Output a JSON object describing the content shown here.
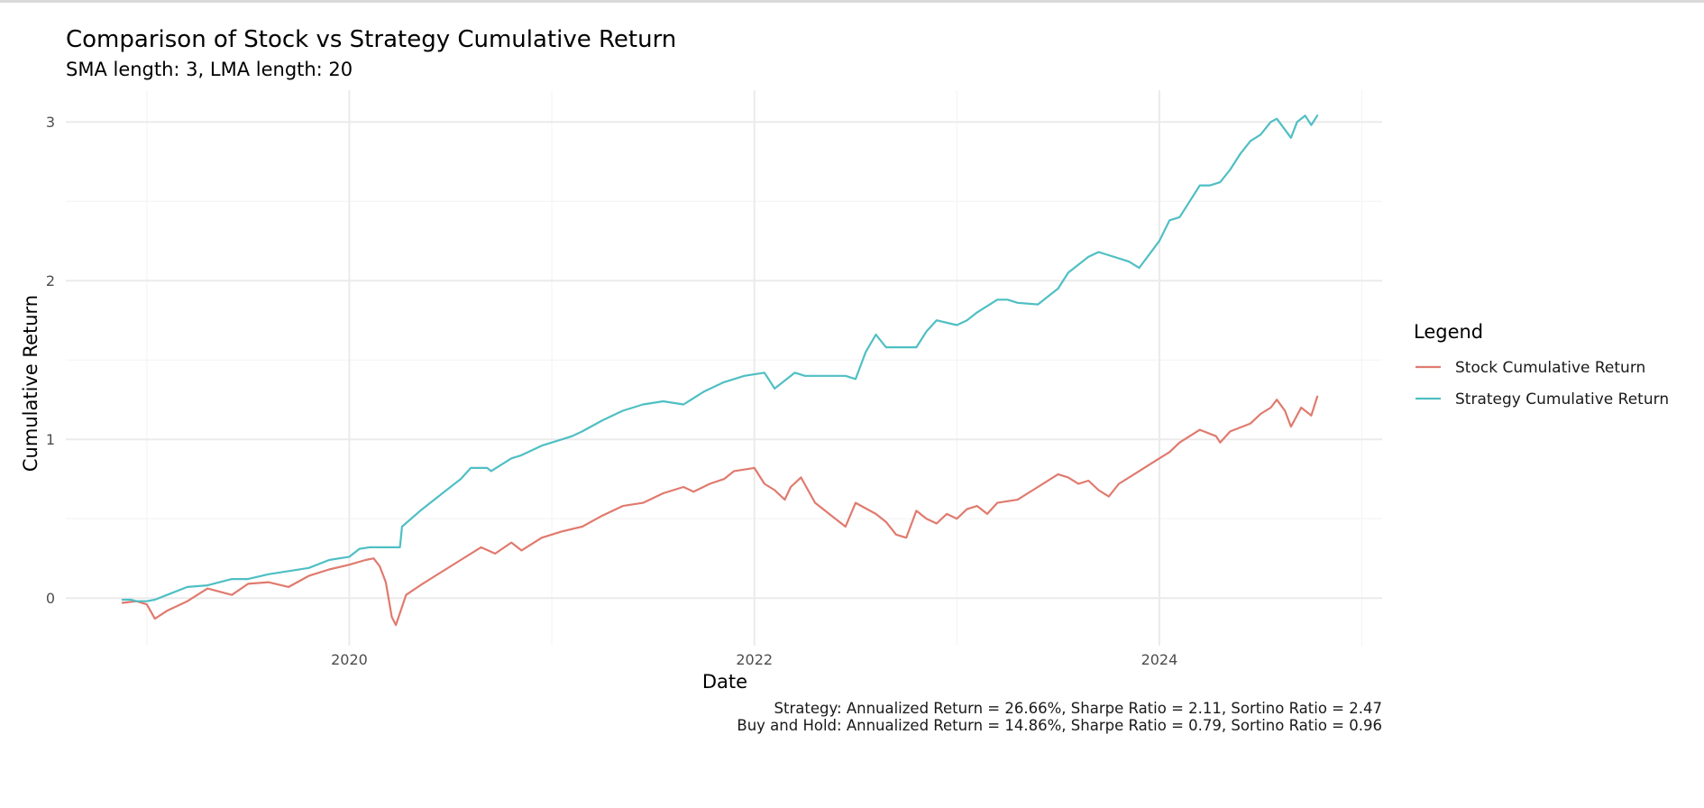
{
  "chart_data": {
    "type": "line",
    "title": "Comparison of Stock vs Strategy Cumulative Return",
    "subtitle": "SMA length: 3, LMA length: 20",
    "xlabel": "Date",
    "ylabel": "Cumulative Return",
    "x_ticks": [
      "2020",
      "2022",
      "2024"
    ],
    "y_ticks": [
      "0",
      "1",
      "2",
      "3"
    ],
    "xlim": [
      2018.6,
      2025.1
    ],
    "ylim": [
      -0.3,
      3.2
    ],
    "grid": true,
    "legend": {
      "title": "Legend",
      "position": "right"
    },
    "caption": [
      "Strategy: Annualized Return = 26.66%, Sharpe Ratio = 2.11, Sortino Ratio = 2.47",
      "Buy and Hold: Annualized Return = 14.86%, Sharpe Ratio = 0.79, Sortino Ratio = 0.96"
    ],
    "series": [
      {
        "name": "Stock Cumulative Return",
        "color": "#E07A6E",
        "x": [
          2018.88,
          2018.95,
          2019.0,
          2019.04,
          2019.1,
          2019.2,
          2019.3,
          2019.42,
          2019.5,
          2019.6,
          2019.7,
          2019.8,
          2019.9,
          2020.0,
          2020.08,
          2020.12,
          2020.15,
          2020.18,
          2020.21,
          2020.23,
          2020.28,
          2020.35,
          2020.45,
          2020.55,
          2020.65,
          2020.72,
          2020.8,
          2020.85,
          2020.95,
          2021.05,
          2021.15,
          2021.25,
          2021.35,
          2021.45,
          2021.55,
          2021.65,
          2021.7,
          2021.78,
          2021.85,
          2021.9,
          2022.0,
          2022.05,
          2022.1,
          2022.15,
          2022.18,
          2022.23,
          2022.3,
          2022.35,
          2022.4,
          2022.45,
          2022.5,
          2022.6,
          2022.65,
          2022.7,
          2022.75,
          2022.8,
          2022.85,
          2022.9,
          2022.95,
          2023.0,
          2023.05,
          2023.1,
          2023.15,
          2023.2,
          2023.3,
          2023.4,
          2023.5,
          2023.55,
          2023.6,
          2023.65,
          2023.7,
          2023.75,
          2023.8,
          2023.9,
          2024.0,
          2024.05,
          2024.1,
          2024.2,
          2024.28,
          2024.3,
          2024.35,
          2024.45,
          2024.5,
          2024.55,
          2024.58,
          2024.62,
          2024.65,
          2024.7,
          2024.75,
          2024.78
        ],
        "y": [
          -0.03,
          -0.02,
          -0.04,
          -0.13,
          -0.08,
          -0.02,
          0.06,
          0.02,
          0.09,
          0.1,
          0.07,
          0.14,
          0.18,
          0.21,
          0.24,
          0.25,
          0.2,
          0.1,
          -0.12,
          -0.17,
          0.02,
          0.08,
          0.16,
          0.24,
          0.32,
          0.28,
          0.35,
          0.3,
          0.38,
          0.42,
          0.45,
          0.52,
          0.58,
          0.6,
          0.66,
          0.7,
          0.67,
          0.72,
          0.75,
          0.8,
          0.82,
          0.72,
          0.68,
          0.62,
          0.7,
          0.76,
          0.6,
          0.55,
          0.5,
          0.45,
          0.6,
          0.53,
          0.48,
          0.4,
          0.38,
          0.55,
          0.5,
          0.47,
          0.53,
          0.5,
          0.56,
          0.58,
          0.53,
          0.6,
          0.62,
          0.7,
          0.78,
          0.76,
          0.72,
          0.74,
          0.68,
          0.64,
          0.72,
          0.8,
          0.88,
          0.92,
          0.98,
          1.06,
          1.02,
          0.98,
          1.05,
          1.1,
          1.16,
          1.2,
          1.25,
          1.18,
          1.08,
          1.2,
          1.15,
          1.27
        ]
      },
      {
        "name": "Strategy Cumulative Return",
        "color": "#4FBFC4",
        "x": [
          2018.88,
          2018.92,
          2018.95,
          2019.0,
          2019.04,
          2019.1,
          2019.2,
          2019.3,
          2019.42,
          2019.5,
          2019.6,
          2019.7,
          2019.8,
          2019.9,
          2020.0,
          2020.05,
          2020.1,
          2020.15,
          2020.25,
          2020.26,
          2020.35,
          2020.45,
          2020.55,
          2020.6,
          2020.68,
          2020.7,
          2020.8,
          2020.85,
          2020.95,
          2021.05,
          2021.1,
          2021.15,
          2021.25,
          2021.35,
          2021.45,
          2021.55,
          2021.65,
          2021.75,
          2021.85,
          2021.95,
          2022.05,
          2022.1,
          2022.2,
          2022.25,
          2022.35,
          2022.45,
          2022.5,
          2022.55,
          2022.6,
          2022.65,
          2022.8,
          2022.85,
          2022.9,
          2023.0,
          2023.05,
          2023.1,
          2023.2,
          2023.25,
          2023.3,
          2023.4,
          2023.45,
          2023.5,
          2023.55,
          2023.65,
          2023.7,
          2023.75,
          2023.85,
          2023.9,
          2024.0,
          2024.05,
          2024.1,
          2024.15,
          2024.2,
          2024.25,
          2024.3,
          2024.35,
          2024.4,
          2024.45,
          2024.5,
          2024.55,
          2024.58,
          2024.65,
          2024.68,
          2024.72,
          2024.75,
          2024.78
        ],
        "y": [
          -0.01,
          -0.01,
          -0.02,
          -0.02,
          -0.01,
          0.02,
          0.07,
          0.08,
          0.12,
          0.12,
          0.15,
          0.17,
          0.19,
          0.24,
          0.26,
          0.31,
          0.32,
          0.32,
          0.32,
          0.45,
          0.55,
          0.65,
          0.75,
          0.82,
          0.82,
          0.8,
          0.88,
          0.9,
          0.96,
          1.0,
          1.02,
          1.05,
          1.12,
          1.18,
          1.22,
          1.24,
          1.22,
          1.3,
          1.36,
          1.4,
          1.42,
          1.32,
          1.42,
          1.4,
          1.4,
          1.4,
          1.38,
          1.55,
          1.66,
          1.58,
          1.58,
          1.68,
          1.75,
          1.72,
          1.75,
          1.8,
          1.88,
          1.88,
          1.86,
          1.85,
          1.9,
          1.95,
          2.05,
          2.15,
          2.18,
          2.16,
          2.12,
          2.08,
          2.25,
          2.38,
          2.4,
          2.5,
          2.6,
          2.6,
          2.62,
          2.7,
          2.8,
          2.88,
          2.92,
          3.0,
          3.02,
          2.9,
          3.0,
          3.04,
          2.98,
          3.04
        ]
      }
    ]
  }
}
